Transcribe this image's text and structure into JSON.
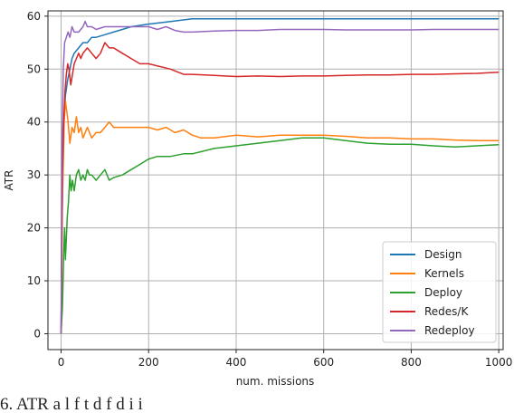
{
  "chart_data": {
    "type": "line",
    "title": "",
    "xlabel": "num. missions",
    "ylabel": "ATR",
    "xlim": [
      -30,
      1010
    ],
    "ylim": [
      -3,
      61
    ],
    "xticks": [
      0,
      200,
      400,
      600,
      800,
      1000
    ],
    "yticks": [
      0,
      10,
      20,
      30,
      40,
      50,
      60
    ],
    "grid": true,
    "legend_position": "lower-right",
    "series": [
      {
        "name": "Design",
        "color": "#1f77b4",
        "points": [
          [
            0,
            0
          ],
          [
            2,
            20
          ],
          [
            5,
            38
          ],
          [
            10,
            45
          ],
          [
            15,
            48
          ],
          [
            20,
            50
          ],
          [
            25,
            52
          ],
          [
            30,
            53
          ],
          [
            40,
            54
          ],
          [
            50,
            55
          ],
          [
            60,
            55
          ],
          [
            70,
            56
          ],
          [
            80,
            56
          ],
          [
            100,
            56.5
          ],
          [
            120,
            57
          ],
          [
            140,
            57.5
          ],
          [
            160,
            58
          ],
          [
            200,
            58.5
          ],
          [
            250,
            59
          ],
          [
            300,
            59.5
          ],
          [
            350,
            59.5
          ],
          [
            400,
            59.5
          ],
          [
            500,
            59.5
          ],
          [
            600,
            59.5
          ],
          [
            700,
            59.5
          ],
          [
            800,
            59.5
          ],
          [
            900,
            59.5
          ],
          [
            1000,
            59.5
          ]
        ]
      },
      {
        "name": "Kernels",
        "color": "#ff7f0e",
        "points": [
          [
            0,
            0
          ],
          [
            3,
            25
          ],
          [
            7,
            40
          ],
          [
            10,
            44
          ],
          [
            13,
            42
          ],
          [
            16,
            40
          ],
          [
            20,
            36
          ],
          [
            25,
            39
          ],
          [
            30,
            38
          ],
          [
            35,
            41
          ],
          [
            40,
            38
          ],
          [
            45,
            39
          ],
          [
            50,
            37
          ],
          [
            60,
            39
          ],
          [
            70,
            37
          ],
          [
            80,
            38
          ],
          [
            90,
            38
          ],
          [
            100,
            39
          ],
          [
            110,
            40
          ],
          [
            120,
            39
          ],
          [
            140,
            39
          ],
          [
            160,
            39
          ],
          [
            200,
            39
          ],
          [
            220,
            38.5
          ],
          [
            240,
            39
          ],
          [
            260,
            38
          ],
          [
            280,
            38.5
          ],
          [
            300,
            37.5
          ],
          [
            320,
            37
          ],
          [
            350,
            37
          ],
          [
            400,
            37.5
          ],
          [
            450,
            37.2
          ],
          [
            500,
            37.5
          ],
          [
            550,
            37.5
          ],
          [
            600,
            37.5
          ],
          [
            650,
            37.3
          ],
          [
            700,
            37
          ],
          [
            750,
            37
          ],
          [
            800,
            36.8
          ],
          [
            850,
            36.8
          ],
          [
            900,
            36.6
          ],
          [
            950,
            36.5
          ],
          [
            1000,
            36.5
          ]
        ]
      },
      {
        "name": "Deploy",
        "color": "#2ca02c",
        "points": [
          [
            0,
            0
          ],
          [
            3,
            5
          ],
          [
            6,
            15
          ],
          [
            8,
            20
          ],
          [
            10,
            14
          ],
          [
            14,
            22
          ],
          [
            17,
            25
          ],
          [
            20,
            30
          ],
          [
            23,
            27
          ],
          [
            26,
            29
          ],
          [
            30,
            27
          ],
          [
            35,
            30
          ],
          [
            40,
            31
          ],
          [
            45,
            29
          ],
          [
            50,
            30
          ],
          [
            55,
            29
          ],
          [
            60,
            31
          ],
          [
            65,
            30
          ],
          [
            70,
            30
          ],
          [
            80,
            29
          ],
          [
            90,
            30
          ],
          [
            100,
            31
          ],
          [
            110,
            29
          ],
          [
            120,
            29.5
          ],
          [
            140,
            30
          ],
          [
            160,
            31
          ],
          [
            180,
            32
          ],
          [
            200,
            33
          ],
          [
            220,
            33.5
          ],
          [
            250,
            33.5
          ],
          [
            280,
            34
          ],
          [
            300,
            34
          ],
          [
            350,
            35
          ],
          [
            400,
            35.5
          ],
          [
            450,
            36
          ],
          [
            500,
            36.5
          ],
          [
            550,
            37
          ],
          [
            600,
            37
          ],
          [
            650,
            36.5
          ],
          [
            700,
            36
          ],
          [
            750,
            35.8
          ],
          [
            800,
            35.8
          ],
          [
            850,
            35.5
          ],
          [
            900,
            35.3
          ],
          [
            950,
            35.5
          ],
          [
            1000,
            35.7
          ]
        ]
      },
      {
        "name": "Redes/K",
        "color": "#d62728",
        "points": [
          [
            0,
            0
          ],
          [
            3,
            30
          ],
          [
            6,
            40
          ],
          [
            9,
            46
          ],
          [
            12,
            49
          ],
          [
            15,
            51
          ],
          [
            18,
            50
          ],
          [
            22,
            47
          ],
          [
            26,
            49
          ],
          [
            30,
            51
          ],
          [
            35,
            52
          ],
          [
            40,
            53
          ],
          [
            45,
            52
          ],
          [
            50,
            53
          ],
          [
            60,
            54
          ],
          [
            70,
            53
          ],
          [
            80,
            52
          ],
          [
            90,
            53
          ],
          [
            100,
            55
          ],
          [
            110,
            54
          ],
          [
            120,
            54
          ],
          [
            140,
            53
          ],
          [
            160,
            52
          ],
          [
            180,
            51
          ],
          [
            200,
            51
          ],
          [
            250,
            50
          ],
          [
            280,
            49
          ],
          [
            300,
            49
          ],
          [
            350,
            48.8
          ],
          [
            400,
            48.6
          ],
          [
            450,
            48.7
          ],
          [
            500,
            48.6
          ],
          [
            550,
            48.7
          ],
          [
            600,
            48.7
          ],
          [
            650,
            48.8
          ],
          [
            700,
            48.9
          ],
          [
            750,
            48.9
          ],
          [
            800,
            49
          ],
          [
            850,
            49
          ],
          [
            900,
            49.1
          ],
          [
            950,
            49.2
          ],
          [
            1000,
            49.4
          ]
        ]
      },
      {
        "name": "Redeploy",
        "color": "#9467bd",
        "points": [
          [
            0,
            0
          ],
          [
            2,
            35
          ],
          [
            5,
            50
          ],
          [
            8,
            55
          ],
          [
            12,
            56
          ],
          [
            16,
            57
          ],
          [
            20,
            56
          ],
          [
            25,
            58
          ],
          [
            30,
            57
          ],
          [
            40,
            57
          ],
          [
            50,
            58
          ],
          [
            55,
            59
          ],
          [
            60,
            58
          ],
          [
            70,
            58
          ],
          [
            80,
            57.5
          ],
          [
            100,
            58
          ],
          [
            120,
            58
          ],
          [
            140,
            58
          ],
          [
            160,
            58
          ],
          [
            200,
            58
          ],
          [
            220,
            57.5
          ],
          [
            240,
            58
          ],
          [
            260,
            57.3
          ],
          [
            280,
            57
          ],
          [
            300,
            57
          ],
          [
            350,
            57.2
          ],
          [
            400,
            57.3
          ],
          [
            450,
            57.3
          ],
          [
            500,
            57.5
          ],
          [
            550,
            57.5
          ],
          [
            600,
            57.5
          ],
          [
            650,
            57.4
          ],
          [
            700,
            57.4
          ],
          [
            750,
            57.4
          ],
          [
            800,
            57.4
          ],
          [
            850,
            57.5
          ],
          [
            900,
            57.5
          ],
          [
            950,
            57.5
          ],
          [
            1000,
            57.5
          ]
        ]
      }
    ]
  },
  "caption_text": "6. ATR  a    l  f       t d  f    d   i  i"
}
